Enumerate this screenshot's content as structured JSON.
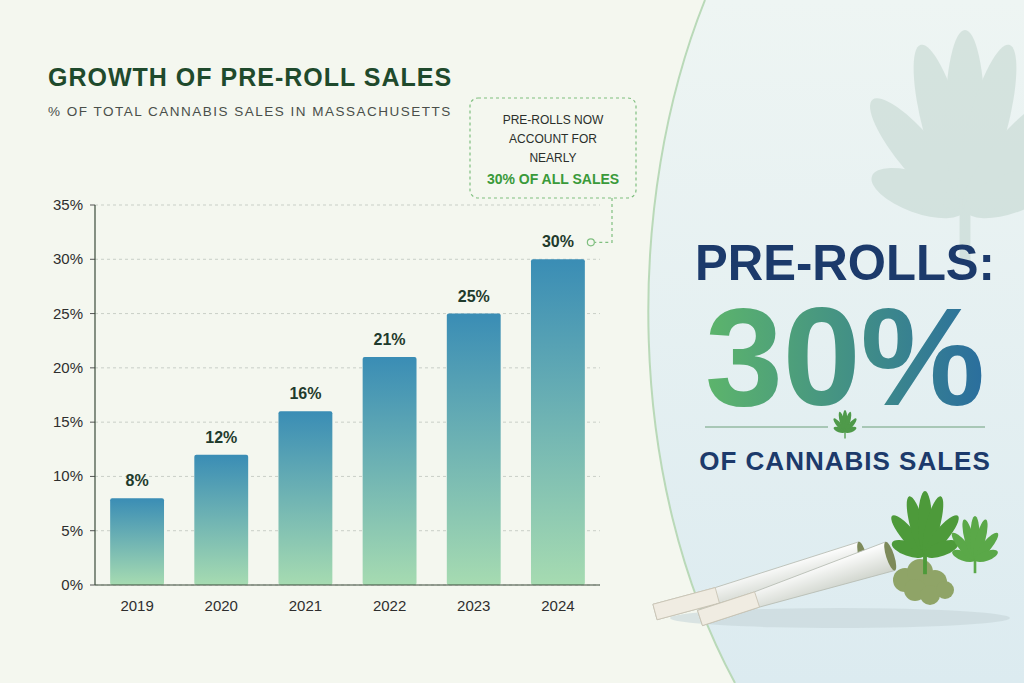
{
  "chart_data": {
    "type": "bar",
    "title": "GROWTH OF PRE-ROLL SALES",
    "subtitle": "% OF TOTAL CANNABIS SALES IN MASSACHUSETTS",
    "categories": [
      "2019",
      "2020",
      "2021",
      "2022",
      "2023",
      "2024"
    ],
    "values": [
      8,
      12,
      16,
      21,
      25,
      30
    ],
    "value_labels": [
      "8%",
      "12%",
      "16%",
      "21%",
      "25%",
      "30%"
    ],
    "color": "#3a8db5",
    "ylim": [
      0,
      35
    ],
    "yticks": [
      {
        "value": 0,
        "label": "0%"
      },
      {
        "value": 5,
        "label": "5%"
      },
      {
        "value": 10,
        "label": "10%"
      },
      {
        "value": 15,
        "label": "15%"
      },
      {
        "value": 20,
        "label": "20%"
      },
      {
        "value": 25,
        "label": "25%"
      },
      {
        "value": 30,
        "label": "30%"
      },
      {
        "value": 35,
        "label": "35%"
      }
    ],
    "grid": true,
    "data_labels": true,
    "annotations": [
      "PRE-ROLLS NOW ACCOUNT FOR NEARLY",
      "30% OF ALL SALES",
      "PRE-ROLLS:",
      "30%",
      "OF CANNABIS SALES"
    ]
  }
}
